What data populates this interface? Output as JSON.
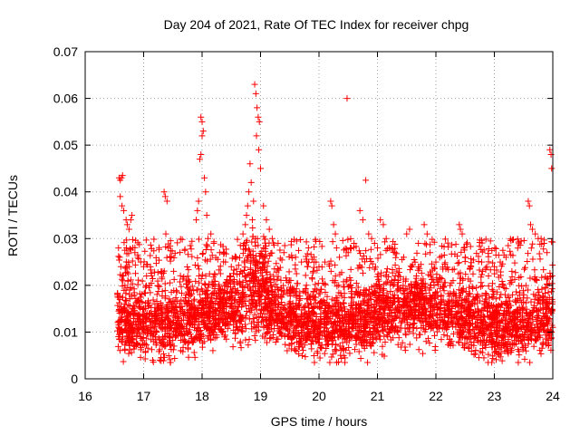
{
  "chart_data": {
    "type": "scatter",
    "title": "Day 204 of 2021, Rate Of TEC Index for receiver chpg",
    "xlabel": "GPS time / hours",
    "ylabel": "ROTI / TECUs",
    "xlim": [
      16,
      24
    ],
    "ylim": [
      0,
      0.07
    ],
    "x_ticks": [
      16,
      17,
      18,
      19,
      20,
      21,
      22,
      23,
      24
    ],
    "x_tick_labels": [
      "16",
      "17",
      "18",
      "19",
      "20",
      "21",
      "22",
      "23",
      "24"
    ],
    "y_ticks": [
      0,
      0.01,
      0.02,
      0.03,
      0.04,
      0.05,
      0.06,
      0.07
    ],
    "y_tick_labels": [
      "0",
      "0.01",
      "0.02",
      "0.03",
      "0.04",
      "0.05",
      "0.06",
      "0.07"
    ],
    "grid": true,
    "marker": "+",
    "color": "#ff0000",
    "series": [
      {
        "name": "ROTI",
        "points": [
          [
            16.58,
            0.043
          ],
          [
            16.6,
            0.0425
          ],
          [
            16.62,
            0.043
          ],
          [
            16.64,
            0.0435
          ],
          [
            16.6,
            0.039
          ],
          [
            16.63,
            0.037
          ],
          [
            16.66,
            0.036
          ],
          [
            16.7,
            0.034
          ],
          [
            16.72,
            0.033
          ],
          [
            16.75,
            0.032
          ],
          [
            16.78,
            0.034
          ],
          [
            16.8,
            0.035
          ],
          [
            16.57,
            0.028
          ],
          [
            16.59,
            0.026
          ],
          [
            16.61,
            0.024
          ],
          [
            16.65,
            0.022
          ],
          [
            16.68,
            0.02
          ],
          [
            16.7,
            0.019
          ],
          [
            16.85,
            0.027
          ],
          [
            16.9,
            0.026
          ],
          [
            16.95,
            0.025
          ],
          [
            17.0,
            0.024
          ],
          [
            17.05,
            0.022
          ],
          [
            17.1,
            0.02
          ],
          [
            17.35,
            0.04
          ],
          [
            17.37,
            0.039
          ],
          [
            17.4,
            0.038
          ],
          [
            17.38,
            0.031
          ],
          [
            17.42,
            0.028
          ],
          [
            17.45,
            0.026
          ],
          [
            17.9,
            0.034
          ],
          [
            17.92,
            0.036
          ],
          [
            17.94,
            0.038
          ],
          [
            17.96,
            0.047
          ],
          [
            17.98,
            0.048
          ],
          [
            18.0,
            0.052
          ],
          [
            17.98,
            0.056
          ],
          [
            18.0,
            0.055
          ],
          [
            18.02,
            0.053
          ],
          [
            18.04,
            0.043
          ],
          [
            18.06,
            0.04
          ],
          [
            18.08,
            0.035
          ],
          [
            18.1,
            0.03
          ],
          [
            18.15,
            0.031
          ],
          [
            18.2,
            0.029
          ],
          [
            18.3,
            0.027
          ],
          [
            18.4,
            0.025
          ],
          [
            18.5,
            0.024
          ],
          [
            18.7,
            0.031
          ],
          [
            18.72,
            0.029
          ],
          [
            18.74,
            0.033
          ],
          [
            18.76,
            0.035
          ],
          [
            18.78,
            0.037
          ],
          [
            18.8,
            0.04
          ],
          [
            18.82,
            0.046
          ],
          [
            18.84,
            0.042
          ],
          [
            18.86,
            0.034
          ],
          [
            18.88,
            0.038
          ],
          [
            18.9,
            0.063
          ],
          [
            18.92,
            0.061
          ],
          [
            18.94,
            0.058
          ],
          [
            18.96,
            0.056
          ],
          [
            18.98,
            0.055
          ],
          [
            18.93,
            0.052
          ],
          [
            18.97,
            0.049
          ],
          [
            19.0,
            0.045
          ],
          [
            19.05,
            0.037
          ],
          [
            19.1,
            0.034
          ],
          [
            19.15,
            0.032
          ],
          [
            19.2,
            0.03
          ],
          [
            19.3,
            0.029
          ],
          [
            19.4,
            0.027
          ],
          [
            19.6,
            0.026
          ],
          [
            19.7,
            0.025
          ],
          [
            19.8,
            0.024
          ],
          [
            19.9,
            0.023
          ],
          [
            20.0,
            0.024
          ],
          [
            20.1,
            0.025
          ],
          [
            20.2,
            0.038
          ],
          [
            20.22,
            0.037
          ],
          [
            20.25,
            0.033
          ],
          [
            20.28,
            0.031
          ],
          [
            20.3,
            0.028
          ],
          [
            20.35,
            0.026
          ],
          [
            20.48,
            0.06
          ],
          [
            20.5,
            0.027
          ],
          [
            20.55,
            0.028
          ],
          [
            20.6,
            0.029
          ],
          [
            20.7,
            0.036
          ],
          [
            20.75,
            0.034
          ],
          [
            20.8,
            0.0425
          ],
          [
            20.85,
            0.031
          ],
          [
            20.9,
            0.03
          ],
          [
            20.95,
            0.029
          ],
          [
            21.0,
            0.028
          ],
          [
            21.05,
            0.034
          ],
          [
            21.1,
            0.033
          ],
          [
            21.15,
            0.03
          ],
          [
            21.2,
            0.028
          ],
          [
            21.3,
            0.027
          ],
          [
            21.45,
            0.026
          ],
          [
            21.5,
            0.031
          ],
          [
            21.55,
            0.032
          ],
          [
            21.7,
            0.029
          ],
          [
            21.8,
            0.033
          ],
          [
            21.85,
            0.031
          ],
          [
            21.9,
            0.027
          ],
          [
            22.0,
            0.025
          ],
          [
            22.4,
            0.033
          ],
          [
            22.42,
            0.032
          ],
          [
            22.45,
            0.031
          ],
          [
            22.48,
            0.028
          ],
          [
            22.5,
            0.026
          ],
          [
            22.6,
            0.024
          ],
          [
            22.8,
            0.023
          ],
          [
            22.9,
            0.022
          ],
          [
            23.0,
            0.024
          ],
          [
            23.1,
            0.025
          ],
          [
            23.2,
            0.026
          ],
          [
            23.3,
            0.023
          ],
          [
            23.58,
            0.038
          ],
          [
            23.6,
            0.037
          ],
          [
            23.62,
            0.033
          ],
          [
            23.65,
            0.032
          ],
          [
            23.7,
            0.031
          ],
          [
            23.75,
            0.03
          ],
          [
            23.8,
            0.03
          ],
          [
            23.85,
            0.029
          ],
          [
            23.9,
            0.027
          ],
          [
            23.95,
            0.049
          ],
          [
            23.97,
            0.048
          ],
          [
            23.98,
            0.045
          ],
          [
            16.6,
            0.01
          ],
          [
            16.8,
            0.011
          ],
          [
            17.0,
            0.012
          ],
          [
            17.2,
            0.009
          ],
          [
            17.4,
            0.013
          ],
          [
            17.6,
            0.011
          ],
          [
            17.8,
            0.012
          ],
          [
            18.0,
            0.014
          ],
          [
            18.2,
            0.01
          ],
          [
            18.4,
            0.013
          ],
          [
            18.6,
            0.012
          ],
          [
            18.8,
            0.015
          ],
          [
            19.0,
            0.014
          ],
          [
            19.2,
            0.013
          ],
          [
            19.4,
            0.012
          ],
          [
            19.6,
            0.011
          ],
          [
            19.8,
            0.013
          ],
          [
            20.0,
            0.012
          ],
          [
            20.2,
            0.014
          ],
          [
            20.4,
            0.013
          ],
          [
            20.6,
            0.012
          ],
          [
            20.8,
            0.011
          ],
          [
            21.0,
            0.013
          ],
          [
            21.2,
            0.014
          ],
          [
            21.4,
            0.012
          ],
          [
            21.6,
            0.011
          ],
          [
            21.8,
            0.013
          ],
          [
            22.0,
            0.012
          ],
          [
            22.2,
            0.011
          ],
          [
            22.4,
            0.01
          ],
          [
            22.6,
            0.009
          ],
          [
            22.8,
            0.011
          ],
          [
            23.0,
            0.012
          ],
          [
            23.2,
            0.013
          ],
          [
            23.4,
            0.014
          ],
          [
            23.6,
            0.013
          ],
          [
            23.8,
            0.012
          ],
          [
            24.0,
            0.011
          ]
        ],
        "bulk_description_free": true
      }
    ]
  }
}
